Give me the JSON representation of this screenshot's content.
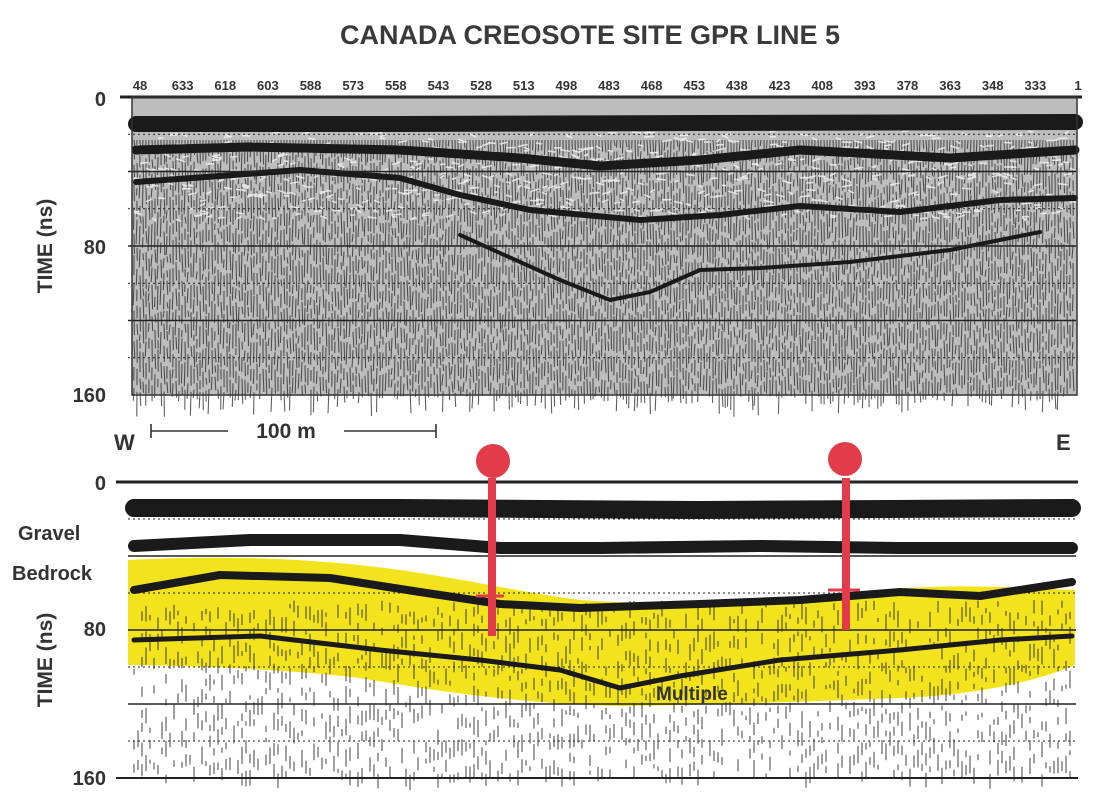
{
  "chart_data": [
    {
      "type": "heatmap",
      "panel": "top",
      "title": "CANADA CREOSOTE SITE GPR LINE 5",
      "ylabel": "TIME  (ns)",
      "ylim": [
        0,
        160
      ],
      "y_ticks": [
        "0",
        "80",
        "160"
      ],
      "x_ticks": [
        "48",
        "633",
        "618",
        "603",
        "588",
        "573",
        "558",
        "543",
        "528",
        "513",
        "498",
        "483",
        "468",
        "453",
        "438",
        "423",
        "408",
        "393",
        "378",
        "363",
        "348",
        "333",
        "1"
      ],
      "x_reversed": true,
      "gridlines_ns": [
        20,
        40,
        60,
        80,
        100,
        120,
        140
      ]
    },
    {
      "type": "heatmap",
      "panel": "bottom",
      "ylabel": "TIME  (ns)",
      "ylim": [
        0,
        160
      ],
      "y_ticks": [
        "0",
        "80",
        "160"
      ],
      "left_end": "W",
      "right_end": "E",
      "scale_bar": "100 m",
      "annotations": [
        "Gravel",
        "Bedrock",
        "Multiple"
      ],
      "colors": {
        "bedrock_fill": "#f2e31c",
        "borehole": "#e23c4b",
        "traces": "#1a1a1a"
      }
    }
  ]
}
